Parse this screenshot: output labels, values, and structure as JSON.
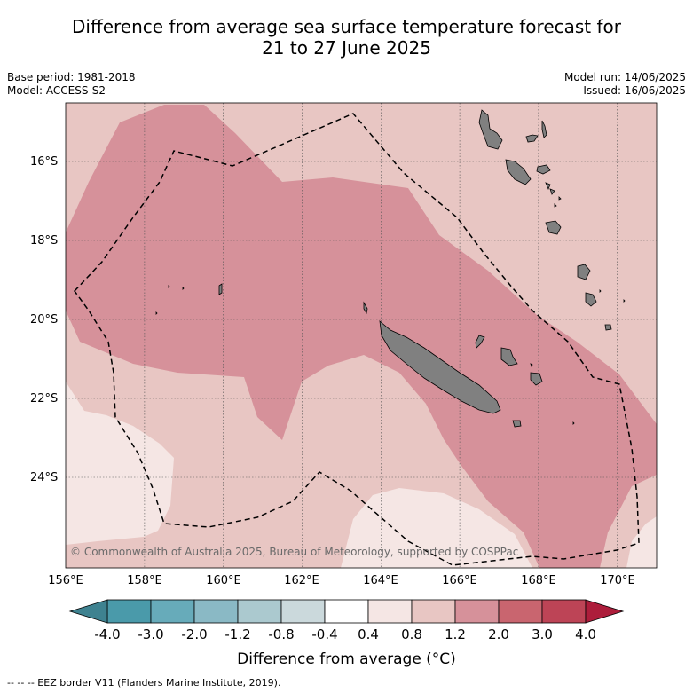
{
  "title_line1": "Difference from average sea surface temperature forecast for",
  "title_line2": "21 to 27 June 2025",
  "base_period": "Base period: 1981-2018",
  "model": "Model: ACCESS-S2",
  "model_run": "Model run: 14/06/2025",
  "issued": "Issued: 16/06/2025",
  "copyright": "© Commonwealth of Australia 2025, Bureau of Meteorology, supported by COSPPac",
  "lat_labels": [
    "16°S",
    "18°S",
    "20°S",
    "22°S",
    "24°S"
  ],
  "lon_labels": [
    "156°E",
    "158°E",
    "160°E",
    "162°E",
    "164°E",
    "166°E",
    "168°E",
    "170°E"
  ],
  "colorbar": {
    "title": "Difference from average (°C)",
    "ticks": [
      "-4.0",
      "-3.0",
      "-2.0",
      "-1.2",
      "-0.8",
      "-0.4",
      "0.4",
      "0.8",
      "1.2",
      "2.0",
      "3.0",
      "4.0"
    ],
    "colors": [
      "#4a9aaa",
      "#67abba",
      "#8ab9c5",
      "#abc9cf",
      "#cbd9dc",
      "#ffffff",
      "#f5e6e4",
      "#e8c6c3",
      "#d6919a",
      "#c9656f",
      "#bd4456"
    ],
    "under_color": "#3e8290",
    "over_color": "#ad1d3b"
  },
  "footer": "--  --  -- EEZ border V11 (Flanders Marine Institute, 2019).",
  "field_colors": {
    "band_04_08": "#f5e6e4",
    "band_08_12": "#e8c6c3",
    "band_12_20": "#d6919a",
    "land": "#808080"
  }
}
